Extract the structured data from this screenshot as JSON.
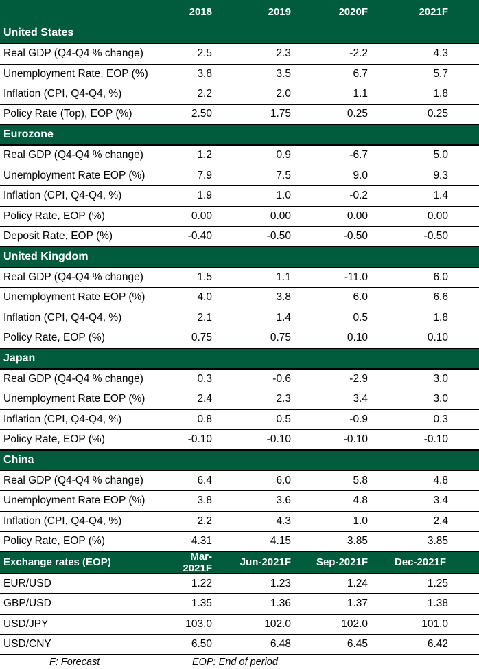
{
  "columns": [
    "2018",
    "2019",
    "2020F",
    "2021F"
  ],
  "sections": [
    {
      "name": "United States",
      "rows": [
        {
          "label": "Real GDP (Q4-Q4 % change)",
          "values": [
            "2.5",
            "2.3",
            "-2.2",
            "4.3"
          ]
        },
        {
          "label": "Unemployment Rate, EOP (%)",
          "values": [
            "3.8",
            "3.5",
            "6.7",
            "5.7"
          ]
        },
        {
          "label": "Inflation (CPI, Q4-Q4, %)",
          "values": [
            "2.2",
            "2.0",
            "1.1",
            "1.8"
          ]
        },
        {
          "label": "Policy Rate (Top), EOP (%)",
          "values": [
            "2.50",
            "1.75",
            "0.25",
            "0.25"
          ]
        }
      ]
    },
    {
      "name": "Eurozone",
      "rows": [
        {
          "label": "Real GDP (Q4-Q4 % change)",
          "values": [
            "1.2",
            "0.9",
            "-6.7",
            "5.0"
          ]
        },
        {
          "label": "Unemployment Rate EOP (%)",
          "values": [
            "7.9",
            "7.5",
            "9.0",
            "9.3"
          ]
        },
        {
          "label": "Inflation (CPI, Q4-Q4, %)",
          "values": [
            "1.9",
            "1.0",
            "-0.2",
            "1.4"
          ]
        },
        {
          "label": "Policy Rate, EOP (%)",
          "values": [
            "0.00",
            "0.00",
            "0.00",
            "0.00"
          ]
        },
        {
          "label": "Deposit Rate, EOP (%)",
          "values": [
            "-0.40",
            "-0.50",
            "-0.50",
            "-0.50"
          ]
        }
      ]
    },
    {
      "name": "United Kingdom",
      "rows": [
        {
          "label": "Real GDP (Q4-Q4 % change)",
          "values": [
            "1.5",
            "1.1",
            "-11.0",
            "6.0"
          ]
        },
        {
          "label": "Unemployment Rate EOP (%)",
          "values": [
            "4.0",
            "3.8",
            "6.0",
            "6.6"
          ]
        },
        {
          "label": "Inflation (CPI, Q4-Q4, %)",
          "values": [
            "2.1",
            "1.4",
            "0.5",
            "1.8"
          ]
        },
        {
          "label": "Policy Rate, EOP (%)",
          "values": [
            "0.75",
            "0.75",
            "0.10",
            "0.10"
          ]
        }
      ]
    },
    {
      "name": "Japan",
      "rows": [
        {
          "label": "Real GDP (Q4-Q4 % change)",
          "values": [
            "0.3",
            "-0.6",
            "-2.9",
            "3.0"
          ]
        },
        {
          "label": "Unemployment Rate EOP (%)",
          "values": [
            "2.4",
            "2.3",
            "3.4",
            "3.0"
          ]
        },
        {
          "label": "Inflation (CPI, Q4-Q4, %)",
          "values": [
            "0.8",
            "0.5",
            "-0.9",
            "0.3"
          ]
        },
        {
          "label": "Policy Rate, EOP (%)",
          "values": [
            "-0.10",
            "-0.10",
            "-0.10",
            "-0.10"
          ]
        }
      ]
    },
    {
      "name": "China",
      "rows": [
        {
          "label": "Real GDP (Q4-Q4 % change)",
          "values": [
            "6.4",
            "6.0",
            "5.8",
            "4.8"
          ]
        },
        {
          "label": "Unemployment Rate EOP (%)",
          "values": [
            "3.8",
            "3.6",
            "4.8",
            "3.4"
          ]
        },
        {
          "label": "Inflation (CPI, Q4-Q4, %)",
          "values": [
            "2.2",
            "4.3",
            "1.0",
            "2.4"
          ]
        },
        {
          "label": "Policy Rate, EOP (%)",
          "values": [
            "4.31",
            "4.15",
            "3.85",
            "3.85"
          ]
        }
      ]
    }
  ],
  "fx": {
    "title": "Exchange rates (EOP)",
    "columns": [
      "Mar-2021F",
      "Jun-2021F",
      "Sep-2021F",
      "Dec-2021F"
    ],
    "rows": [
      {
        "label": "EUR/USD",
        "values": [
          "1.22",
          "1.23",
          "1.24",
          "1.25"
        ]
      },
      {
        "label": "GBP/USD",
        "values": [
          "1.35",
          "1.36",
          "1.37",
          "1.38"
        ]
      },
      {
        "label": "USD/JPY",
        "values": [
          "103.0",
          "102.0",
          "102.0",
          "101.0"
        ]
      },
      {
        "label": "USD/CNY",
        "values": [
          "6.50",
          "6.48",
          "6.45",
          "6.42"
        ]
      }
    ]
  },
  "footnotes": {
    "forecast": "F: Forecast",
    "eop": "EOP: End of period"
  },
  "colors": {
    "header_green": "#005c3c",
    "header_text": "#ffffff"
  }
}
